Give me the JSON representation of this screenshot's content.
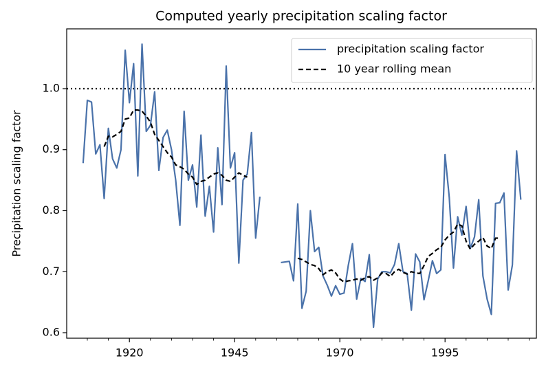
{
  "chart_data": {
    "type": "line",
    "title": "Computed yearly precipitation scaling factor",
    "ylabel": "Precipitation scaling factor",
    "x": [
      1909,
      1910,
      1911,
      1912,
      1913,
      1914,
      1915,
      1916,
      1917,
      1918,
      1919,
      1920,
      1921,
      1922,
      1923,
      1924,
      1925,
      1926,
      1927,
      1928,
      1929,
      1930,
      1931,
      1932,
      1933,
      1934,
      1935,
      1936,
      1937,
      1938,
      1939,
      1940,
      1941,
      1942,
      1943,
      1944,
      1945,
      1946,
      1947,
      1948,
      1949,
      1950,
      1951,
      1952,
      1953,
      1954,
      1955,
      1956,
      1957,
      1958,
      1959,
      1960,
      1961,
      1962,
      1963,
      1964,
      1965,
      1966,
      1967,
      1968,
      1969,
      1970,
      1971,
      1972,
      1973,
      1974,
      1975,
      1976,
      1977,
      1978,
      1979,
      1980,
      1981,
      1982,
      1983,
      1984,
      1985,
      1986,
      1987,
      1988,
      1989,
      1990,
      1991,
      1992,
      1993,
      1994,
      1995,
      1996,
      1997,
      1998,
      1999,
      2000,
      2001,
      2002,
      2003,
      2004,
      2005,
      2006,
      2007,
      2008,
      2009,
      2010,
      2011,
      2012,
      2013
    ],
    "series": [
      {
        "name": "precipitation scaling factor",
        "color": "#4a72aa",
        "dash": "solid",
        "values": [
          0.878,
          0.981,
          0.978,
          0.893,
          0.908,
          0.82,
          0.935,
          0.885,
          0.87,
          0.9,
          1.063,
          0.977,
          1.041,
          0.857,
          1.073,
          0.93,
          0.94,
          0.995,
          0.866,
          0.92,
          0.932,
          0.9,
          0.85,
          0.776,
          0.963,
          0.85,
          0.875,
          0.806,
          0.924,
          0.791,
          0.84,
          0.765,
          0.903,
          0.81,
          1.037,
          0.87,
          0.895,
          0.714,
          0.85,
          0.86,
          0.928,
          0.755,
          0.823,
          null,
          null,
          null,
          null,
          0.715,
          0.716,
          0.717,
          0.685,
          0.811,
          0.64,
          0.668,
          0.8,
          0.733,
          0.74,
          0.693,
          0.678,
          0.66,
          0.677,
          0.663,
          0.665,
          0.71,
          0.746,
          0.655,
          0.689,
          0.684,
          0.728,
          0.609,
          0.688,
          0.7,
          0.7,
          0.698,
          0.712,
          0.746,
          0.7,
          0.697,
          0.637,
          0.729,
          0.716,
          0.654,
          0.685,
          0.718,
          0.697,
          0.703,
          0.892,
          0.822,
          0.706,
          0.79,
          0.76,
          0.807,
          0.738,
          0.757,
          0.818,
          0.693,
          0.655,
          0.63,
          0.812,
          0.813,
          0.829,
          0.67,
          0.711,
          0.898,
          0.818
        ]
      },
      {
        "name": "10 year rolling mean",
        "color": "#000000",
        "dash": "dashed",
        "values": [
          null,
          null,
          null,
          null,
          null,
          0.905,
          0.922,
          0.921,
          0.925,
          0.93,
          0.95,
          0.952,
          0.965,
          0.965,
          0.963,
          0.955,
          0.945,
          0.925,
          0.915,
          0.905,
          0.895,
          0.888,
          0.875,
          0.872,
          0.868,
          0.86,
          0.855,
          0.843,
          0.848,
          0.85,
          0.855,
          0.86,
          0.862,
          0.858,
          0.85,
          0.848,
          0.855,
          0.862,
          0.858,
          0.855,
          null,
          null,
          null,
          null,
          null,
          null,
          null,
          null,
          null,
          null,
          null,
          0.722,
          0.72,
          0.716,
          0.712,
          0.71,
          0.705,
          0.695,
          0.7,
          0.703,
          0.698,
          0.688,
          0.683,
          0.685,
          0.686,
          0.688,
          0.686,
          0.69,
          0.692,
          0.686,
          0.69,
          0.698,
          0.697,
          0.692,
          0.7,
          0.704,
          0.699,
          0.696,
          0.7,
          0.698,
          0.697,
          0.71,
          0.725,
          0.73,
          0.736,
          0.74,
          0.752,
          0.76,
          0.765,
          0.778,
          0.775,
          0.75,
          0.737,
          0.745,
          0.75,
          0.756,
          0.742,
          0.738,
          0.755,
          0.755,
          null,
          null,
          null,
          null,
          null
        ]
      }
    ],
    "xlim": [
      1905.1,
      2016.7
    ],
    "ylim": [
      0.591,
      1.098
    ],
    "xticks": [
      1920,
      1945,
      1970,
      1995
    ],
    "xminorticks": [
      1910,
      1915,
      1925,
      1930,
      1935,
      1940,
      1950,
      1955,
      1960,
      1965,
      1975,
      1980,
      1985,
      1990,
      2000,
      2005,
      2010,
      2015
    ],
    "yticks": [
      0.6,
      0.7,
      0.8,
      0.9,
      {
        "value": 1,
        "label": "1.0"
      }
    ],
    "hline": 1,
    "legend": "upper right"
  }
}
